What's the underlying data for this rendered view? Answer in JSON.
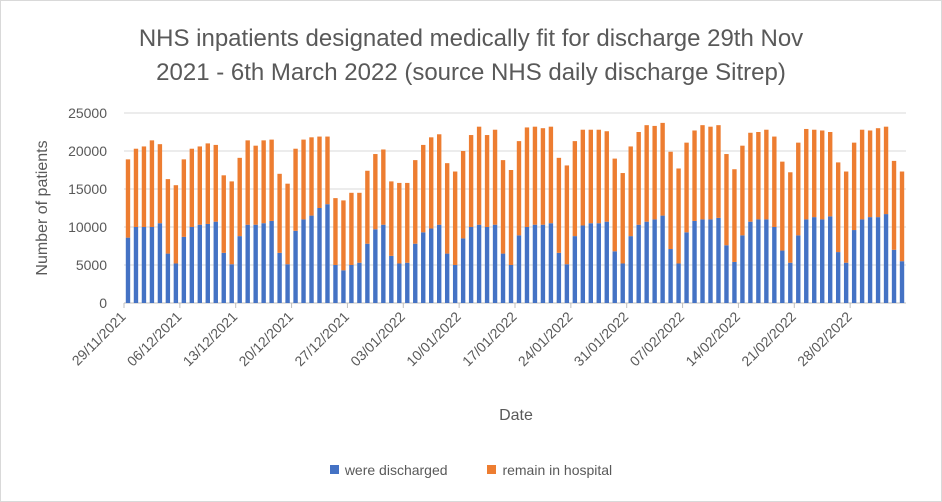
{
  "chart_data": {
    "type": "bar",
    "stacked": true,
    "title_line1": "NHS inpatients designated medically fit for discharge 29th Nov",
    "title_line2": "2021 - 6th March 2022 (source NHS daily discharge Sitrep)",
    "xlabel": "Date",
    "ylabel": "Number of patients",
    "ylim": [
      0,
      25000
    ],
    "yticks": [
      "0",
      "5000",
      "10000",
      "15000",
      "20000",
      "25000"
    ],
    "grid": true,
    "legend_position": "bottom",
    "xtick_labels": [
      {
        "label": "29/11/2021",
        "index": 0
      },
      {
        "label": "06/12/2021",
        "index": 7
      },
      {
        "label": "13/12/2021",
        "index": 14
      },
      {
        "label": "20/12/2021",
        "index": 21
      },
      {
        "label": "27/12/2021",
        "index": 28
      },
      {
        "label": "03/01/2022",
        "index": 35
      },
      {
        "label": "10/01/2022",
        "index": 42
      },
      {
        "label": "17/01/2022",
        "index": 49
      },
      {
        "label": "24/01/2022",
        "index": 56
      },
      {
        "label": "31/01/2022",
        "index": 63
      },
      {
        "label": "07/02/2022",
        "index": 70
      },
      {
        "label": "14/02/2022",
        "index": 77
      },
      {
        "label": "21/02/2022",
        "index": 84
      },
      {
        "label": "28/02/2022",
        "index": 91
      }
    ],
    "series": [
      {
        "name": "were discharged",
        "color": "#4472c4",
        "values": [
          8600,
          10000,
          10000,
          10000,
          10500,
          6500,
          5200,
          8700,
          10000,
          10300,
          10400,
          10700,
          6600,
          5100,
          8800,
          10300,
          10300,
          10500,
          10800,
          6600,
          5100,
          9500,
          11000,
          11500,
          12500,
          13000,
          5000,
          4300,
          5000,
          5300,
          7800,
          9700,
          10300,
          6200,
          5200,
          5300,
          7800,
          9300,
          9800,
          10300,
          6500,
          5000,
          8500,
          10000,
          10300,
          10000,
          10300,
          6500,
          5000,
          8900,
          10000,
          10300,
          10300,
          10500,
          6600,
          5100,
          8800,
          10200,
          10500,
          10500,
          10700,
          6800,
          5200,
          8800,
          10300,
          10700,
          11000,
          11500,
          7100,
          5200,
          9300,
          10800,
          11000,
          11000,
          11200,
          7600,
          5400,
          8900,
          10700,
          11000,
          11000,
          10000,
          6900,
          5300,
          8900,
          11000,
          11300,
          11000,
          11400,
          6700,
          5300,
          9600,
          11000,
          11300,
          11300,
          11700,
          7000,
          5500
        ]
      },
      {
        "name": "remain in hospital",
        "color": "#ed7d31",
        "values": [
          10300,
          10300,
          10600,
          11400,
          10400,
          9800,
          10300,
          10200,
          10300,
          10300,
          10600,
          10100,
          10200,
          10900,
          10300,
          11100,
          10400,
          10900,
          10700,
          10400,
          10600,
          10800,
          10500,
          10300,
          9400,
          8900,
          8800,
          9200,
          9500,
          9200,
          9600,
          9900,
          9900,
          9800,
          10600,
          10500,
          11000,
          11500,
          12000,
          11900,
          11900,
          12300,
          11500,
          12100,
          12900,
          12100,
          12500,
          12300,
          12500,
          12400,
          13100,
          12900,
          12700,
          12700,
          12500,
          13000,
          12500,
          12600,
          12300,
          12300,
          11900,
          12200,
          11900,
          11800,
          12200,
          12700,
          12300,
          12200,
          12800,
          12500,
          11800,
          11900,
          12400,
          12200,
          12200,
          12000,
          12200,
          11800,
          11700,
          11500,
          11800,
          11900,
          11700,
          11900,
          12200,
          11900,
          11500,
          11700,
          11100,
          11800,
          12000,
          11500,
          11800,
          11400,
          11700,
          11500,
          11700,
          11800
        ]
      }
    ]
  },
  "legend": {
    "items": [
      {
        "label": "were discharged",
        "color": "#4472c4"
      },
      {
        "label": "remain in hospital",
        "color": "#ed7d31"
      }
    ]
  }
}
